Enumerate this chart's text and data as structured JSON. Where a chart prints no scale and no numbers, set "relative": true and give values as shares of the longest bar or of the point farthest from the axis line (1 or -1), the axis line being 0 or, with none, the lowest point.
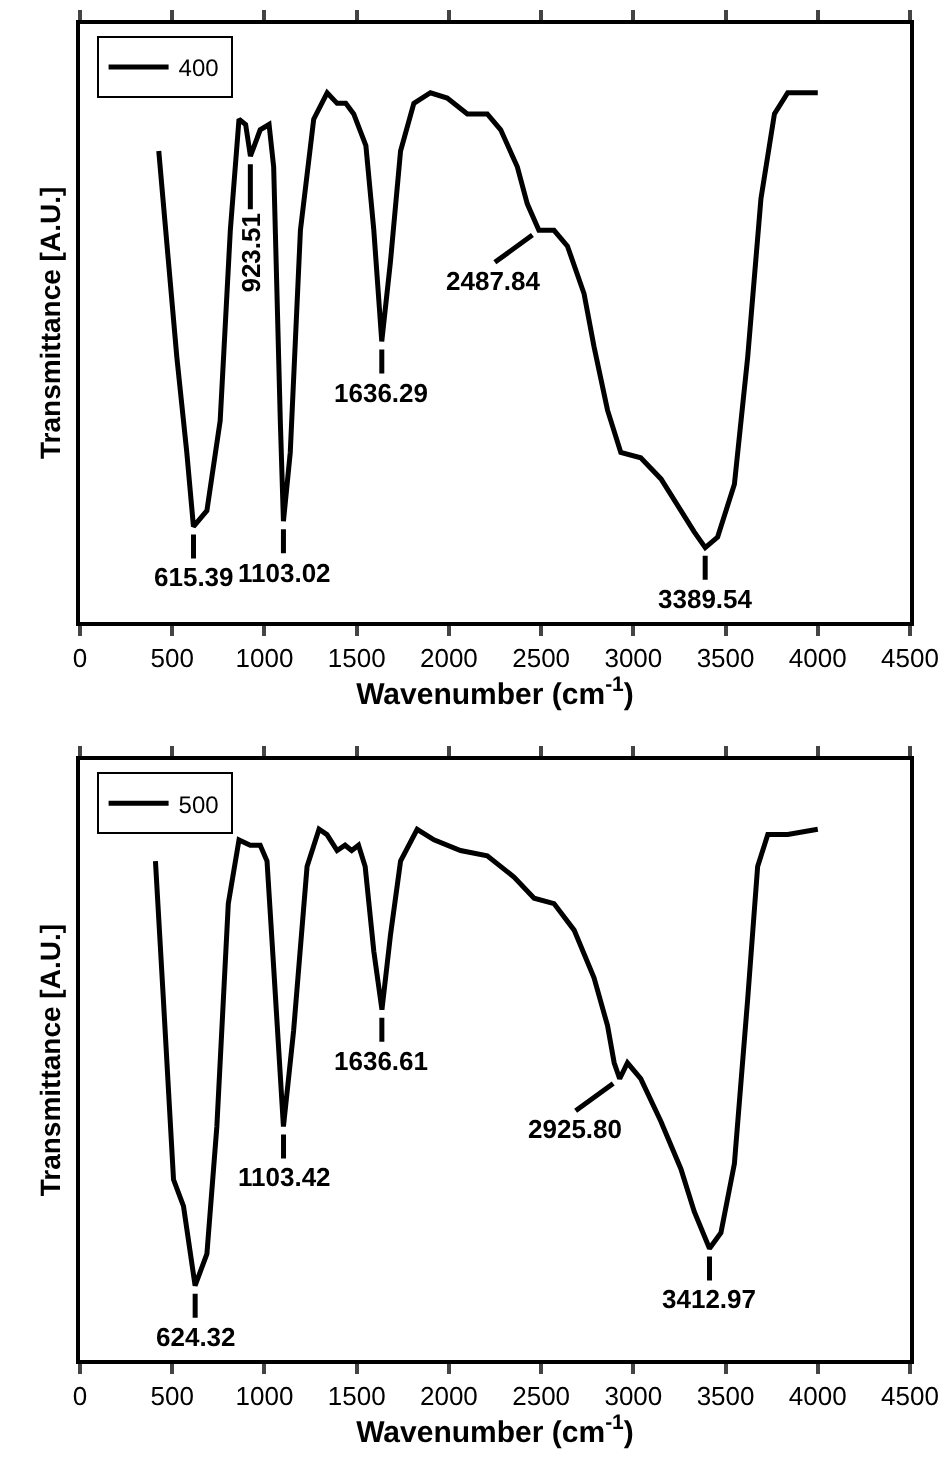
{
  "chart_data": [
    {
      "type": "line",
      "relative": true,
      "xlabel": "Wavenumber (cm$^{-1}$)",
      "ylabel": "Transmittance [A.U.]",
      "xlim": [
        0,
        4500
      ],
      "xticks": [
        0,
        500,
        1000,
        1500,
        2000,
        2500,
        3000,
        3500,
        4000,
        4500
      ],
      "legend": "top left",
      "tick_labels": "x",
      "series": [
        {
          "name": "400",
          "color": "#000000",
          "x": [
            427,
            525,
            579,
            615,
            688,
            760,
            815,
            862,
            898,
            924,
            977,
            1025,
            1050,
            1086,
            1103,
            1140,
            1195,
            1267,
            1340,
            1394,
            1441,
            1484,
            1550,
            1593,
            1636,
            1683,
            1738,
            1810,
            1900,
            1991,
            2100,
            2208,
            2281,
            2371,
            2425,
            2488,
            2516,
            2570,
            2643,
            2733,
            2787,
            2860,
            2932,
            3040,
            3150,
            3258,
            3330,
            3390,
            3457,
            3548,
            3620,
            3692,
            3765,
            3837,
            4000
          ],
          "values": [
            0.89,
            0.5,
            0.32,
            0.18,
            0.21,
            0.38,
            0.74,
            0.95,
            0.94,
            0.88,
            0.93,
            0.94,
            0.86,
            0.38,
            0.19,
            0.32,
            0.74,
            0.95,
            1.0,
            0.98,
            0.98,
            0.96,
            0.9,
            0.74,
            0.53,
            0.68,
            0.89,
            0.98,
            1.0,
            0.99,
            0.96,
            0.96,
            0.93,
            0.86,
            0.79,
            0.74,
            0.74,
            0.74,
            0.71,
            0.62,
            0.52,
            0.4,
            0.32,
            0.31,
            0.27,
            0.21,
            0.17,
            0.14,
            0.16,
            0.26,
            0.5,
            0.8,
            0.96,
            1.0,
            1.0
          ]
        }
      ],
      "annotations": [
        {
          "text": "615.39",
          "x": 615.39,
          "y": 0.18
        },
        {
          "text": "923.51",
          "x": 923.51,
          "y": 0.88
        },
        {
          "text": "1103.02",
          "x": 1103.02,
          "y": 0.19
        },
        {
          "text": "1636.29",
          "x": 1636.29,
          "y": 0.53
        },
        {
          "text": "2487.84",
          "x": 2487.84,
          "y": 0.74
        },
        {
          "text": "3389.54",
          "x": 3389.54,
          "y": 0.14
        }
      ]
    },
    {
      "type": "line",
      "relative": true,
      "xlabel": "Wavenumber (cm$^{-1}$)",
      "ylabel": "Transmittance [A.U.]",
      "xlim": [
        0,
        4500
      ],
      "xticks": [
        0,
        500,
        1000,
        1500,
        2000,
        2500,
        3000,
        3500,
        4000,
        4500
      ],
      "legend": "top left",
      "tick_labels": "x",
      "series": [
        {
          "name": "500",
          "color": "#000000",
          "x": [
            409,
            452,
            507,
            561,
            624,
            688,
            742,
            804,
            862,
            923,
            977,
            1014,
            1050,
            1103,
            1158,
            1231,
            1296,
            1339,
            1394,
            1437,
            1473,
            1510,
            1546,
            1593,
            1637,
            1683,
            1738,
            1828,
            1919,
            2063,
            2208,
            2353,
            2462,
            2570,
            2679,
            2787,
            2860,
            2896,
            2926,
            2968,
            3040,
            3149,
            3258,
            3330,
            3413,
            3475,
            3548,
            3620,
            3674,
            3729,
            3837,
            4000
          ],
          "values": [
            0.94,
            0.68,
            0.34,
            0.29,
            0.14,
            0.2,
            0.44,
            0.86,
            0.98,
            0.97,
            0.97,
            0.94,
            0.74,
            0.44,
            0.62,
            0.93,
            1.0,
            0.99,
            0.96,
            0.97,
            0.96,
            0.97,
            0.93,
            0.77,
            0.66,
            0.8,
            0.94,
            1.0,
            0.98,
            0.96,
            0.95,
            0.91,
            0.87,
            0.86,
            0.81,
            0.72,
            0.63,
            0.56,
            0.53,
            0.56,
            0.53,
            0.45,
            0.36,
            0.28,
            0.21,
            0.24,
            0.37,
            0.68,
            0.93,
            0.99,
            0.99,
            1.0
          ]
        }
      ],
      "annotations": [
        {
          "text": "624.32",
          "x": 624.32,
          "y": 0.14
        },
        {
          "text": "1103.42",
          "x": 1103.42,
          "y": 0.44
        },
        {
          "text": "1636.61",
          "x": 1636.61,
          "y": 0.66
        },
        {
          "text": "2925.80",
          "x": 2925.8,
          "y": 0.53
        },
        {
          "text": "3412.97",
          "x": 3412.97,
          "y": 0.21
        }
      ]
    }
  ]
}
